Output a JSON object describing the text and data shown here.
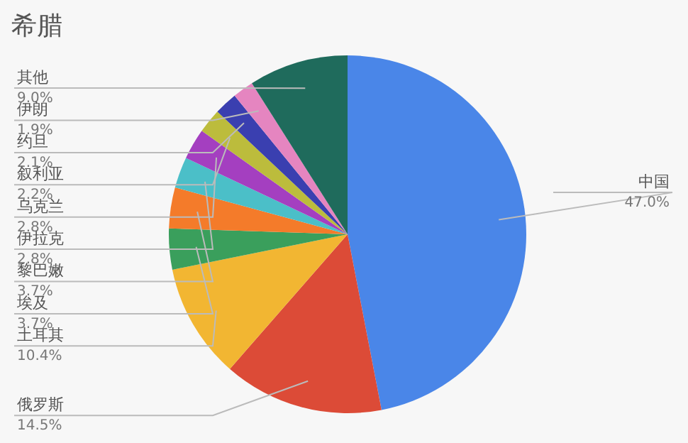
{
  "chart_data": {
    "type": "pie",
    "title": "希腊",
    "categories": [
      "中国",
      "俄罗斯",
      "土耳其",
      "埃及",
      "黎巴嫩",
      "伊拉克",
      "乌克兰",
      "叙利亚",
      "约旦",
      "伊朗",
      "其他"
    ],
    "values": [
      47.0,
      14.5,
      10.4,
      3.7,
      3.7,
      2.8,
      2.8,
      2.2,
      2.1,
      1.9,
      9.0
    ],
    "colors": [
      "#4a86e8",
      "#dc4b37",
      "#f2b632",
      "#3a9f5c",
      "#f47b2a",
      "#4bbfc8",
      "#a43fc0",
      "#bcbc3c",
      "#3a3fb0",
      "#e585c0",
      "#1f6b5c"
    ],
    "value_labels": [
      "47.0%",
      "14.5%",
      "10.4%",
      "3.7%",
      "3.7%",
      "2.8%",
      "2.8%",
      "2.2%",
      "2.1%",
      "1.9%",
      "9.0%"
    ]
  }
}
